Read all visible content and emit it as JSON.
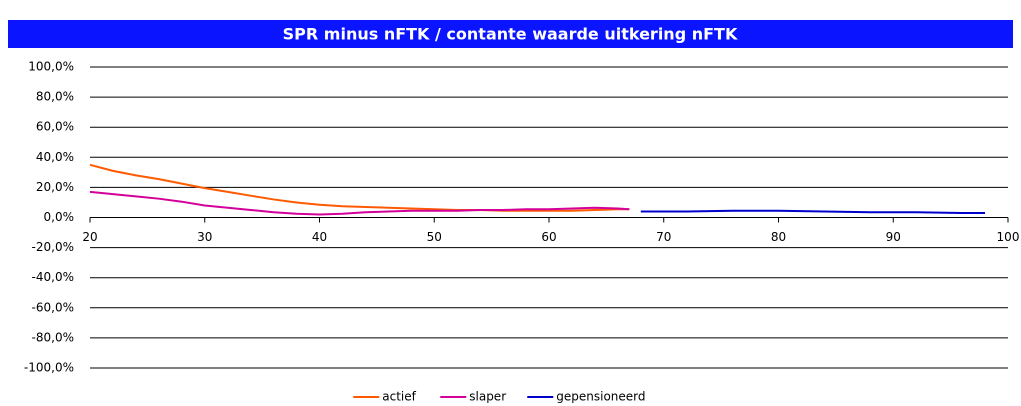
{
  "chart_data": {
    "type": "line",
    "title": "SPR minus nFTK / contante waarde uitkering nFTK",
    "xlim": [
      20,
      100
    ],
    "xticks": [
      20,
      30,
      40,
      50,
      60,
      70,
      80,
      90,
      100
    ],
    "ylim": [
      -100,
      100
    ],
    "yticks": [
      {
        "value": -100,
        "label": "-100,0%"
      },
      {
        "value": -80,
        "label": "-80,0%"
      },
      {
        "value": -60,
        "label": "-60,0%"
      },
      {
        "value": -40,
        "label": "-40,0%"
      },
      {
        "value": -20,
        "label": "-20,0%"
      },
      {
        "value": 0,
        "label": "0,0%"
      },
      {
        "value": 20,
        "label": "20,0%"
      },
      {
        "value": 40,
        "label": "40,0%"
      },
      {
        "value": 60,
        "label": "60,0%"
      },
      {
        "value": 80,
        "label": "80,0%"
      },
      {
        "value": 100,
        "label": "100,0%"
      }
    ],
    "grid": true,
    "legend": "bottom",
    "series": [
      {
        "name": "actief",
        "color": "#ff5a00",
        "x": [
          20,
          22,
          24,
          26,
          28,
          30,
          32,
          34,
          36,
          38,
          40,
          42,
          44,
          46,
          48,
          50,
          52,
          54,
          56,
          58,
          60,
          62,
          64,
          66,
          67
        ],
        "values": [
          35,
          31,
          28,
          25.5,
          22.5,
          19.5,
          17,
          14.5,
          12,
          10,
          8.5,
          7.5,
          7,
          6.5,
          6,
          5.5,
          5,
          5,
          4.5,
          4.5,
          4.5,
          4.5,
          5,
          5.5,
          5.5
        ]
      },
      {
        "name": "slaper",
        "color": "#d4009a",
        "x": [
          20,
          22,
          24,
          26,
          28,
          30,
          32,
          34,
          36,
          38,
          40,
          42,
          44,
          46,
          48,
          50,
          52,
          54,
          56,
          58,
          60,
          62,
          64,
          66,
          67
        ],
        "values": [
          17,
          15.5,
          14,
          12.5,
          10.5,
          8,
          6.5,
          5,
          3.5,
          2.5,
          2,
          2.5,
          3.5,
          4,
          4.5,
          4.5,
          4.5,
          5,
          5,
          5.5,
          5.5,
          6,
          6.5,
          6,
          5.5
        ]
      },
      {
        "name": "gepensioneerd",
        "color": "#0000cc",
        "x": [
          68,
          72,
          76,
          80,
          84,
          88,
          92,
          96,
          98
        ],
        "values": [
          4,
          4,
          4.5,
          4.5,
          4,
          3.5,
          3.5,
          3,
          3
        ]
      }
    ]
  }
}
